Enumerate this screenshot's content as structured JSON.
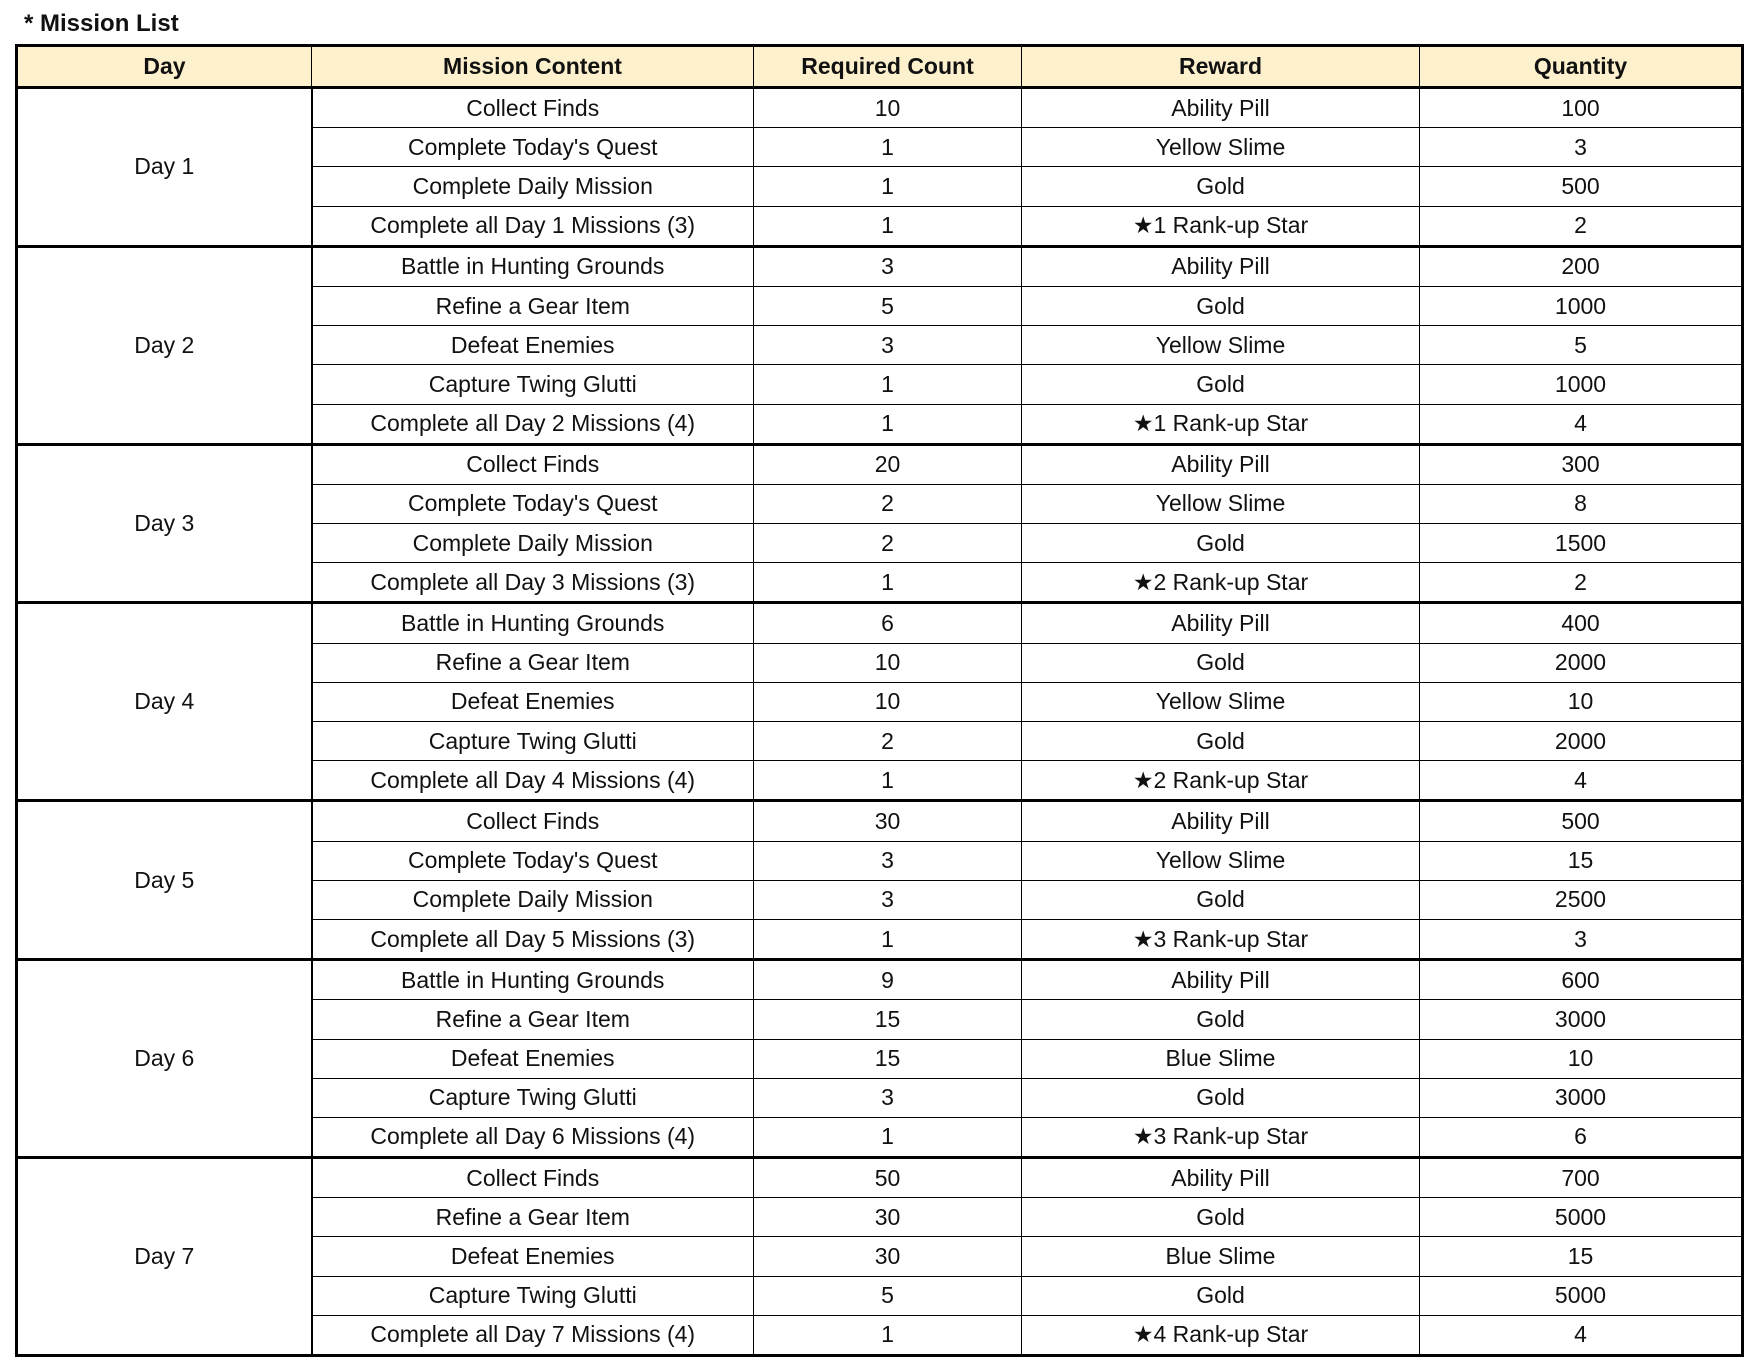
{
  "title": "* Mission List",
  "headers": [
    "Day",
    "Mission Content",
    "Required Count",
    "Reward",
    "Quantity"
  ],
  "days": [
    {
      "day": "Day 1",
      "rows": [
        [
          "Collect Finds",
          "10",
          "Ability Pill",
          "100"
        ],
        [
          "Complete Today's Quest",
          "1",
          "Yellow Slime",
          "3"
        ],
        [
          "Complete Daily Mission",
          "1",
          "Gold",
          "500"
        ],
        [
          "Complete all Day 1 Missions (3)",
          "1",
          "★1 Rank-up Star",
          "2"
        ]
      ]
    },
    {
      "day": "Day 2",
      "rows": [
        [
          "Battle in Hunting Grounds",
          "3",
          "Ability Pill",
          "200"
        ],
        [
          "Refine a Gear Item",
          "5",
          "Gold",
          "1000"
        ],
        [
          "Defeat Enemies",
          "3",
          "Yellow Slime",
          "5"
        ],
        [
          "Capture Twing Glutti",
          "1",
          "Gold",
          "1000"
        ],
        [
          "Complete all Day 2 Missions (4)",
          "1",
          "★1 Rank-up Star",
          "4"
        ]
      ]
    },
    {
      "day": "Day 3",
      "rows": [
        [
          "Collect Finds",
          "20",
          "Ability Pill",
          "300"
        ],
        [
          "Complete Today's Quest",
          "2",
          "Yellow Slime",
          "8"
        ],
        [
          "Complete Daily Mission",
          "2",
          "Gold",
          "1500"
        ],
        [
          "Complete all Day 3 Missions (3)",
          "1",
          "★2 Rank-up Star",
          "2"
        ]
      ]
    },
    {
      "day": "Day 4",
      "rows": [
        [
          "Battle in Hunting Grounds",
          "6",
          "Ability Pill",
          "400"
        ],
        [
          "Refine a Gear Item",
          "10",
          "Gold",
          "2000"
        ],
        [
          "Defeat Enemies",
          "10",
          "Yellow Slime",
          "10"
        ],
        [
          "Capture Twing Glutti",
          "2",
          "Gold",
          "2000"
        ],
        [
          "Complete all Day 4 Missions (4)",
          "1",
          "★2 Rank-up Star",
          "4"
        ]
      ]
    },
    {
      "day": "Day 5",
      "rows": [
        [
          "Collect Finds",
          "30",
          "Ability Pill",
          "500"
        ],
        [
          "Complete Today's Quest",
          "3",
          "Yellow Slime",
          "15"
        ],
        [
          "Complete Daily Mission",
          "3",
          "Gold",
          "2500"
        ],
        [
          "Complete all Day 5 Missions (3)",
          "1",
          "★3 Rank-up Star",
          "3"
        ]
      ]
    },
    {
      "day": "Day 6",
      "rows": [
        [
          "Battle in Hunting Grounds",
          "9",
          "Ability Pill",
          "600"
        ],
        [
          "Refine a Gear Item",
          "15",
          "Gold",
          "3000"
        ],
        [
          "Defeat Enemies",
          "15",
          "Blue Slime",
          "10"
        ],
        [
          "Capture Twing Glutti",
          "3",
          "Gold",
          "3000"
        ],
        [
          "Complete all Day 6 Missions (4)",
          "1",
          "★3 Rank-up Star",
          "6"
        ]
      ]
    },
    {
      "day": "Day 7",
      "rows": [
        [
          "Collect Finds",
          "50",
          "Ability Pill",
          "700"
        ],
        [
          "Refine a Gear Item",
          "30",
          "Gold",
          "5000"
        ],
        [
          "Defeat Enemies",
          "30",
          "Blue Slime",
          "15"
        ],
        [
          "Capture Twing Glutti",
          "5",
          "Gold",
          "5000"
        ],
        [
          "Complete all Day 7 Missions (4)",
          "1",
          "★4 Rank-up Star",
          "4"
        ]
      ]
    }
  ],
  "colors": {
    "header_bg": "#fdf0cc",
    "border": "#000000"
  }
}
